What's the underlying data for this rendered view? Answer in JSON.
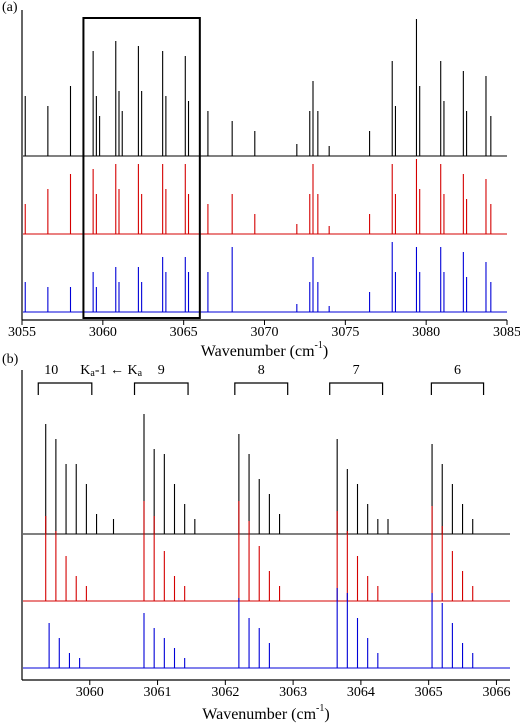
{
  "chart_data": [
    {
      "type": "stick",
      "panel_label": "(a)",
      "x_label": [
        "Wavenumber (cm",
        "-1",
        ")"
      ],
      "xlim": [
        3055,
        3085
      ],
      "xticks": [
        3055,
        3060,
        3065,
        3070,
        3075,
        3080,
        3085
      ],
      "highlight_range": [
        3058.8,
        3066
      ],
      "series": [
        {
          "color": "#000000",
          "x": [
            3055.2,
            3056.6,
            3058.0,
            3059.4,
            3059.6,
            3059.8,
            3060.8,
            3061.0,
            3061.2,
            3062.2,
            3062.4,
            3063.7,
            3063.9,
            3065.1,
            3065.3,
            3066.5,
            3068.0,
            3069.4,
            3072.0,
            3072.8,
            3073.0,
            3073.3,
            3074.0,
            3076.5,
            3077.9,
            3078.1,
            3079.4,
            3079.6,
            3080.9,
            3081.1,
            3082.3,
            3082.5,
            3083.7,
            3084.0
          ],
          "values": [
            60,
            50,
            70,
            105,
            60,
            40,
            115,
            65,
            45,
            110,
            65,
            105,
            60,
            100,
            55,
            45,
            35,
            25,
            12,
            45,
            75,
            45,
            10,
            25,
            95,
            50,
            137,
            70,
            95,
            55,
            85,
            45,
            80,
            40
          ]
        },
        {
          "color": "#d40000",
          "x": [
            3055.2,
            3056.6,
            3058.0,
            3059.4,
            3059.6,
            3060.8,
            3061.0,
            3062.2,
            3062.4,
            3063.7,
            3063.9,
            3065.1,
            3065.3,
            3066.5,
            3068.0,
            3069.4,
            3072.0,
            3072.8,
            3073.0,
            3073.3,
            3074.0,
            3076.5,
            3077.9,
            3078.1,
            3079.4,
            3079.6,
            3080.9,
            3081.1,
            3082.3,
            3082.5,
            3083.7,
            3084.0
          ],
          "values": [
            30,
            45,
            60,
            65,
            40,
            70,
            45,
            70,
            40,
            70,
            45,
            70,
            40,
            30,
            40,
            20,
            10,
            40,
            70,
            40,
            8,
            20,
            70,
            40,
            75,
            45,
            70,
            40,
            60,
            35,
            55,
            30
          ]
        },
        {
          "color": "#0000d8",
          "x": [
            3055.2,
            3056.6,
            3058.0,
            3059.4,
            3059.6,
            3060.8,
            3061.0,
            3062.2,
            3062.4,
            3063.7,
            3063.9,
            3065.1,
            3065.3,
            3066.5,
            3068.0,
            3072.0,
            3072.8,
            3073.0,
            3073.3,
            3074.0,
            3076.5,
            3077.9,
            3078.1,
            3079.4,
            3079.6,
            3080.9,
            3081.1,
            3082.3,
            3082.5,
            3083.7,
            3084.0
          ],
          "values": [
            30,
            25,
            25,
            40,
            25,
            45,
            30,
            45,
            30,
            55,
            40,
            55,
            40,
            40,
            65,
            8,
            30,
            55,
            30,
            6,
            20,
            70,
            40,
            65,
            40,
            65,
            40,
            60,
            35,
            50,
            30
          ]
        }
      ]
    },
    {
      "type": "stick",
      "panel_label": "(b)",
      "x_label": [
        "Wavenumber (cm",
        "-1",
        ")"
      ],
      "xlim": [
        3059,
        3066.2
      ],
      "xticks": [
        3060,
        3061,
        3062,
        3063,
        3064,
        3065,
        3066
      ],
      "bracket_note": [
        "K",
        "a",
        "-1 ← K",
        "a"
      ],
      "brackets": [
        {
          "label": "10",
          "range": [
            3059.24,
            3060.03
          ]
        },
        {
          "label": "9",
          "range": [
            3060.66,
            3061.45
          ]
        },
        {
          "label": "8",
          "range": [
            3062.14,
            3062.92
          ]
        },
        {
          "label": "7",
          "range": [
            3063.54,
            3064.32
          ]
        },
        {
          "label": "6",
          "range": [
            3065.04,
            3065.81
          ]
        }
      ],
      "series": [
        {
          "color": "#000000",
          "x": [
            3059.35,
            3059.5,
            3059.65,
            3059.8,
            3059.95,
            3060.1,
            3060.35,
            3060.8,
            3060.95,
            3061.1,
            3061.25,
            3061.4,
            3061.55,
            3062.2,
            3062.35,
            3062.5,
            3062.65,
            3062.8,
            3063.65,
            3063.8,
            3063.95,
            3064.1,
            3064.25,
            3064.4,
            3065.05,
            3065.2,
            3065.35,
            3065.5,
            3065.65
          ],
          "values": [
            110,
            95,
            70,
            70,
            50,
            20,
            15,
            120,
            85,
            80,
            50,
            30,
            15,
            100,
            80,
            55,
            40,
            20,
            95,
            65,
            50,
            30,
            15,
            15,
            90,
            70,
            50,
            30,
            15
          ]
        },
        {
          "color": "#d40000",
          "x": [
            3059.35,
            3059.5,
            3059.65,
            3059.8,
            3059.95,
            3060.8,
            3060.95,
            3061.1,
            3061.25,
            3061.4,
            3062.2,
            3062.35,
            3062.5,
            3062.65,
            3062.8,
            3063.65,
            3063.8,
            3063.95,
            3064.1,
            3064.25,
            3065.05,
            3065.2,
            3065.35,
            3065.5,
            3065.65
          ],
          "values": [
            85,
            70,
            45,
            25,
            15,
            100,
            85,
            50,
            25,
            15,
            100,
            80,
            55,
            30,
            15,
            90,
            70,
            45,
            25,
            15,
            95,
            75,
            50,
            30,
            15
          ]
        },
        {
          "color": "#0000d8",
          "x": [
            3059.4,
            3059.55,
            3059.7,
            3059.85,
            3060.8,
            3060.95,
            3061.1,
            3061.25,
            3061.4,
            3062.2,
            3062.35,
            3062.5,
            3062.65,
            3063.65,
            3063.8,
            3063.95,
            3064.1,
            3064.25,
            3065.05,
            3065.2,
            3065.35,
            3065.5,
            3065.65
          ],
          "values": [
            45,
            30,
            15,
            10,
            55,
            40,
            30,
            20,
            10,
            70,
            50,
            40,
            25,
            80,
            75,
            50,
            30,
            15,
            75,
            65,
            45,
            25,
            15
          ]
        }
      ]
    }
  ]
}
